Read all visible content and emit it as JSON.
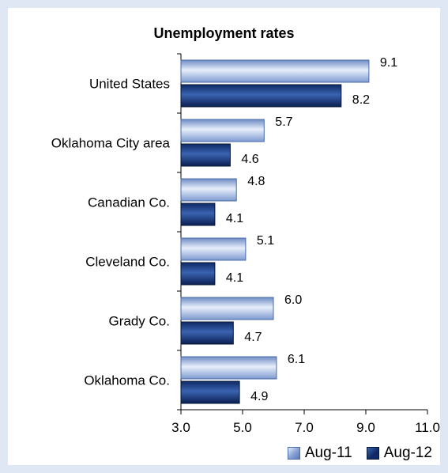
{
  "chart_data": {
    "type": "bar",
    "orientation": "horizontal",
    "title": "Unemployment rates",
    "categories": [
      "United States",
      "Oklahoma City area",
      "Canadian Co.",
      "Cleveland Co.",
      "Grady Co.",
      "Oklahoma Co."
    ],
    "series": [
      {
        "name": "Aug-11",
        "values": [
          9.1,
          5.7,
          4.8,
          5.1,
          6.0,
          6.1
        ],
        "color": "#9db4de"
      },
      {
        "name": "Aug-12",
        "values": [
          8.2,
          4.6,
          4.1,
          4.1,
          4.7,
          4.9
        ],
        "color": "#1f3f7f"
      }
    ],
    "xlim": [
      3.0,
      11.0
    ],
    "xticks": [
      "3.0",
      "5.0",
      "7.0",
      "9.0",
      "11.0"
    ],
    "grid": false,
    "legend_position": "bottom-right"
  }
}
